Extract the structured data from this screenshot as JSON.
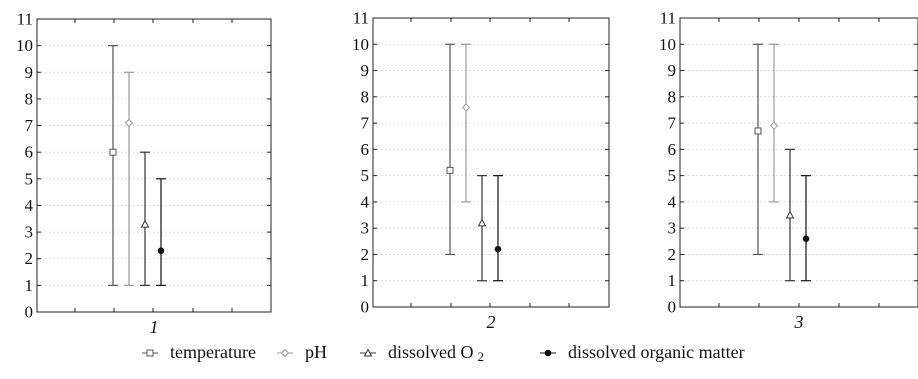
{
  "chart_data": {
    "type": "error_bar",
    "ylim": [
      0,
      11
    ],
    "yticks": [
      0,
      1,
      2,
      3,
      4,
      5,
      6,
      7,
      8,
      9,
      10,
      11
    ],
    "grid": "horizontal dotted",
    "legend_position": "bottom",
    "series": [
      {
        "key": "temperature",
        "name": "temperature",
        "marker": "open-square",
        "color": "#555555"
      },
      {
        "key": "ph",
        "name": "pH",
        "marker": "open-diamond",
        "color": "#999999"
      },
      {
        "key": "o2",
        "name": "dissolved O",
        "subscript": "2",
        "marker": "open-triangle",
        "color": "#333333"
      },
      {
        "key": "dom",
        "name": "dissolved organic matter",
        "marker": "filled-circle",
        "color": "#111111"
      }
    ],
    "panels": [
      {
        "label": "1",
        "data": [
          {
            "series": "temperature",
            "mean": 6.0,
            "min": 1,
            "max": 10
          },
          {
            "series": "ph",
            "mean": 7.1,
            "min": 1,
            "max": 9
          },
          {
            "series": "o2",
            "mean": 3.3,
            "min": 1,
            "max": 6
          },
          {
            "series": "dom",
            "mean": 2.3,
            "min": 1,
            "max": 5
          }
        ]
      },
      {
        "label": "2",
        "data": [
          {
            "series": "temperature",
            "mean": 5.2,
            "min": 2,
            "max": 10
          },
          {
            "series": "ph",
            "mean": 7.6,
            "min": 4,
            "max": 10
          },
          {
            "series": "o2",
            "mean": 3.2,
            "min": 1,
            "max": 5
          },
          {
            "series": "dom",
            "mean": 2.2,
            "min": 1,
            "max": 5
          }
        ]
      },
      {
        "label": "3",
        "data": [
          {
            "series": "temperature",
            "mean": 6.7,
            "min": 2,
            "max": 10
          },
          {
            "series": "ph",
            "mean": 6.9,
            "min": 4,
            "max": 10
          },
          {
            "series": "o2",
            "mean": 3.5,
            "min": 1,
            "max": 6
          },
          {
            "series": "dom",
            "mean": 2.6,
            "min": 1,
            "max": 5
          }
        ]
      }
    ]
  }
}
